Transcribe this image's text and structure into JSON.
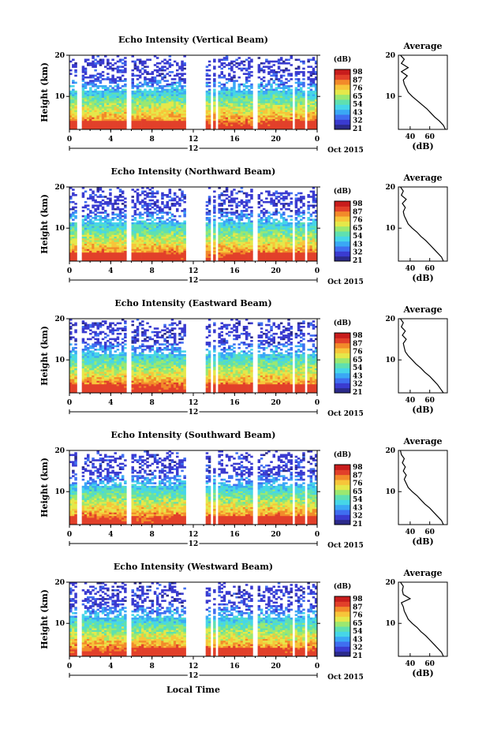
{
  "figure": {
    "x_axis_label": "Local Time",
    "colors": {
      "colormap": [
        "#2b2a8a",
        "#3a3bd0",
        "#3f6ef0",
        "#3aa8f5",
        "#46d6e8",
        "#5fe0b0",
        "#9be870",
        "#e5e84a",
        "#f7c53a",
        "#f28a2a",
        "#e2402a",
        "#c81c1c"
      ],
      "gap": "#ffffff",
      "axis": "#000000",
      "profile_line": "#000000"
    }
  },
  "chart_data": [
    {
      "type": "heatmap",
      "title": "Echo Intensity (Vertical Beam)",
      "ylabel": "Height (km)",
      "ylim": [
        2,
        20
      ],
      "yticks": [
        "10",
        "20"
      ],
      "xlim": [
        0,
        24
      ],
      "xticks": [
        "0",
        "4",
        "8",
        "12",
        "16",
        "20",
        "0"
      ],
      "time_midline_label": "12",
      "date_label": "Oct 2015",
      "colorbar": {
        "unit": "(dB)",
        "range": [
          31,
          98
        ],
        "ticks": [
          "98",
          "87",
          "76",
          "65",
          "54",
          "43",
          "32",
          "21"
        ]
      },
      "data_gaps_hours": [
        [
          0.8,
          1.2
        ],
        [
          5.6,
          5.9
        ],
        [
          10.7,
          10.9
        ],
        [
          11.2,
          13.2
        ],
        [
          13.6,
          13.9
        ],
        [
          14.2,
          14.5
        ],
        [
          17.8,
          18.2
        ],
        [
          21.6,
          21.9
        ],
        [
          22.8,
          23.1
        ]
      ],
      "profile": {
        "title": "Average",
        "xlabel": "(dB)",
        "xticks": [
          "40",
          "60"
        ],
        "xlim": [
          28,
          78
        ],
        "ylim": [
          2,
          20
        ],
        "yticks": [
          "10",
          "20"
        ],
        "heights_km": [
          2,
          3,
          4,
          5,
          6,
          7,
          8,
          9,
          10,
          11,
          12,
          13,
          14,
          15,
          16,
          17,
          18,
          19,
          20
        ],
        "values_db": [
          76,
          74,
          70,
          65,
          61,
          57,
          52,
          47,
          42,
          38,
          36,
          34,
          33,
          37,
          31,
          38,
          31,
          34,
          30
        ]
      }
    },
    {
      "type": "heatmap",
      "title": "Echo Intensity (Northward Beam)",
      "ylabel": "Height (km)",
      "ylim": [
        2,
        20
      ],
      "yticks": [
        "10",
        "20"
      ],
      "xlim": [
        0,
        24
      ],
      "xticks": [
        "0",
        "4",
        "8",
        "12",
        "16",
        "20",
        "0"
      ],
      "time_midline_label": "12",
      "date_label": "Oct 2015",
      "colorbar": {
        "unit": "(dB)",
        "range": [
          31,
          98
        ],
        "ticks": [
          "98",
          "87",
          "76",
          "65",
          "54",
          "43",
          "32",
          "21"
        ]
      },
      "data_gaps_hours": [
        [
          0.8,
          1.2
        ],
        [
          5.6,
          5.9
        ],
        [
          10.7,
          10.9
        ],
        [
          11.2,
          13.2
        ],
        [
          13.6,
          13.9
        ],
        [
          14.2,
          14.5
        ],
        [
          17.8,
          18.2
        ],
        [
          21.6,
          21.9
        ],
        [
          22.8,
          23.1
        ]
      ],
      "profile": {
        "title": "Average",
        "xlabel": "(dB)",
        "xticks": [
          "40",
          "60"
        ],
        "xlim": [
          28,
          78
        ],
        "ylim": [
          2,
          20
        ],
        "yticks": [
          "10",
          "20"
        ],
        "heights_km": [
          2,
          3,
          4,
          5,
          6,
          7,
          8,
          9,
          10,
          11,
          12,
          13,
          14,
          15,
          16,
          17,
          18,
          19,
          20
        ],
        "values_db": [
          74,
          72,
          68,
          64,
          60,
          56,
          51,
          47,
          42,
          38,
          36,
          34,
          33,
          35,
          32,
          36,
          31,
          33,
          30
        ]
      }
    },
    {
      "type": "heatmap",
      "title": "Echo Intensity (Eastward Beam)",
      "ylabel": "Height (km)",
      "ylim": [
        2,
        20
      ],
      "yticks": [
        "10",
        "20"
      ],
      "xlim": [
        0,
        24
      ],
      "xticks": [
        "0",
        "4",
        "8",
        "12",
        "16",
        "20",
        "0"
      ],
      "time_midline_label": "12",
      "date_label": "Oct 2015",
      "colorbar": {
        "unit": "(dB)",
        "range": [
          31,
          98
        ],
        "ticks": [
          "98",
          "87",
          "76",
          "65",
          "54",
          "43",
          "32",
          "21"
        ]
      },
      "data_gaps_hours": [
        [
          0.8,
          1.2
        ],
        [
          5.6,
          5.9
        ],
        [
          10.7,
          10.9
        ],
        [
          11.2,
          13.2
        ],
        [
          13.6,
          13.9
        ],
        [
          14.2,
          14.5
        ],
        [
          17.8,
          18.2
        ],
        [
          21.6,
          21.9
        ],
        [
          22.8,
          23.1
        ]
      ],
      "profile": {
        "title": "Average",
        "xlabel": "(dB)",
        "xticks": [
          "40",
          "60"
        ],
        "xlim": [
          28,
          78
        ],
        "ylim": [
          2,
          20
        ],
        "yticks": [
          "10",
          "20"
        ],
        "heights_km": [
          2,
          3,
          4,
          5,
          6,
          7,
          8,
          9,
          10,
          11,
          12,
          13,
          14,
          15,
          16,
          17,
          18,
          19,
          20
        ],
        "values_db": [
          74,
          71,
          68,
          64,
          60,
          55,
          51,
          46,
          42,
          38,
          35,
          34,
          33,
          36,
          32,
          35,
          31,
          33,
          30
        ]
      }
    },
    {
      "type": "heatmap",
      "title": "Echo Intensity (Southward Beam)",
      "ylabel": "Height (km)",
      "ylim": [
        2,
        20
      ],
      "yticks": [
        "10",
        "20"
      ],
      "xlim": [
        0,
        24
      ],
      "xticks": [
        "0",
        "4",
        "8",
        "12",
        "16",
        "20",
        "0"
      ],
      "time_midline_label": "12",
      "date_label": "Oct 2015",
      "colorbar": {
        "unit": "(dB)",
        "range": [
          31,
          98
        ],
        "ticks": [
          "98",
          "87",
          "76",
          "65",
          "54",
          "43",
          "32",
          "21"
        ]
      },
      "data_gaps_hours": [
        [
          0.8,
          1.2
        ],
        [
          5.6,
          5.9
        ],
        [
          10.7,
          10.9
        ],
        [
          11.2,
          13.2
        ],
        [
          13.6,
          13.9
        ],
        [
          14.2,
          14.5
        ],
        [
          17.8,
          18.2
        ],
        [
          21.6,
          21.9
        ],
        [
          22.8,
          23.1
        ]
      ],
      "profile": {
        "title": "Average",
        "xlabel": "(dB)",
        "xticks": [
          "40",
          "60"
        ],
        "xlim": [
          28,
          78
        ],
        "ylim": [
          2,
          20
        ],
        "yticks": [
          "10",
          "20"
        ],
        "heights_km": [
          2,
          3,
          4,
          5,
          6,
          7,
          8,
          9,
          10,
          11,
          12,
          13,
          14,
          15,
          16,
          17,
          18,
          19,
          20
        ],
        "values_db": [
          74,
          72,
          68,
          64,
          60,
          55,
          51,
          47,
          42,
          38,
          36,
          34,
          36,
          33,
          35,
          32,
          34,
          31,
          30
        ]
      }
    },
    {
      "type": "heatmap",
      "title": "Echo Intensity (Westward Beam)",
      "ylabel": "Height (km)",
      "ylim": [
        2,
        20
      ],
      "yticks": [
        "10",
        "20"
      ],
      "xlim": [
        0,
        24
      ],
      "xticks": [
        "0",
        "4",
        "8",
        "12",
        "16",
        "20",
        "0"
      ],
      "time_midline_label": "12",
      "date_label": "Oct 2015",
      "colorbar": {
        "unit": "(dB)",
        "range": [
          31,
          98
        ],
        "ticks": [
          "98",
          "87",
          "76",
          "65",
          "54",
          "43",
          "32",
          "21"
        ]
      },
      "data_gaps_hours": [
        [
          0.8,
          1.2
        ],
        [
          5.6,
          5.9
        ],
        [
          10.7,
          10.9
        ],
        [
          11.2,
          13.2
        ],
        [
          13.6,
          13.9
        ],
        [
          14.2,
          14.5
        ],
        [
          17.8,
          18.2
        ],
        [
          21.6,
          21.9
        ],
        [
          22.8,
          23.1
        ]
      ],
      "profile": {
        "title": "Average",
        "xlabel": "(dB)",
        "xticks": [
          "40",
          "60"
        ],
        "xlim": [
          28,
          78
        ],
        "ylim": [
          2,
          20
        ],
        "yticks": [
          "10",
          "20"
        ],
        "heights_km": [
          2,
          3,
          4,
          5,
          6,
          7,
          8,
          9,
          10,
          11,
          12,
          13,
          14,
          15,
          16,
          17,
          18,
          19,
          20
        ],
        "values_db": [
          74,
          72,
          68,
          64,
          60,
          56,
          51,
          47,
          42,
          38,
          36,
          34,
          33,
          31,
          40,
          33,
          32,
          33,
          30
        ]
      }
    }
  ]
}
